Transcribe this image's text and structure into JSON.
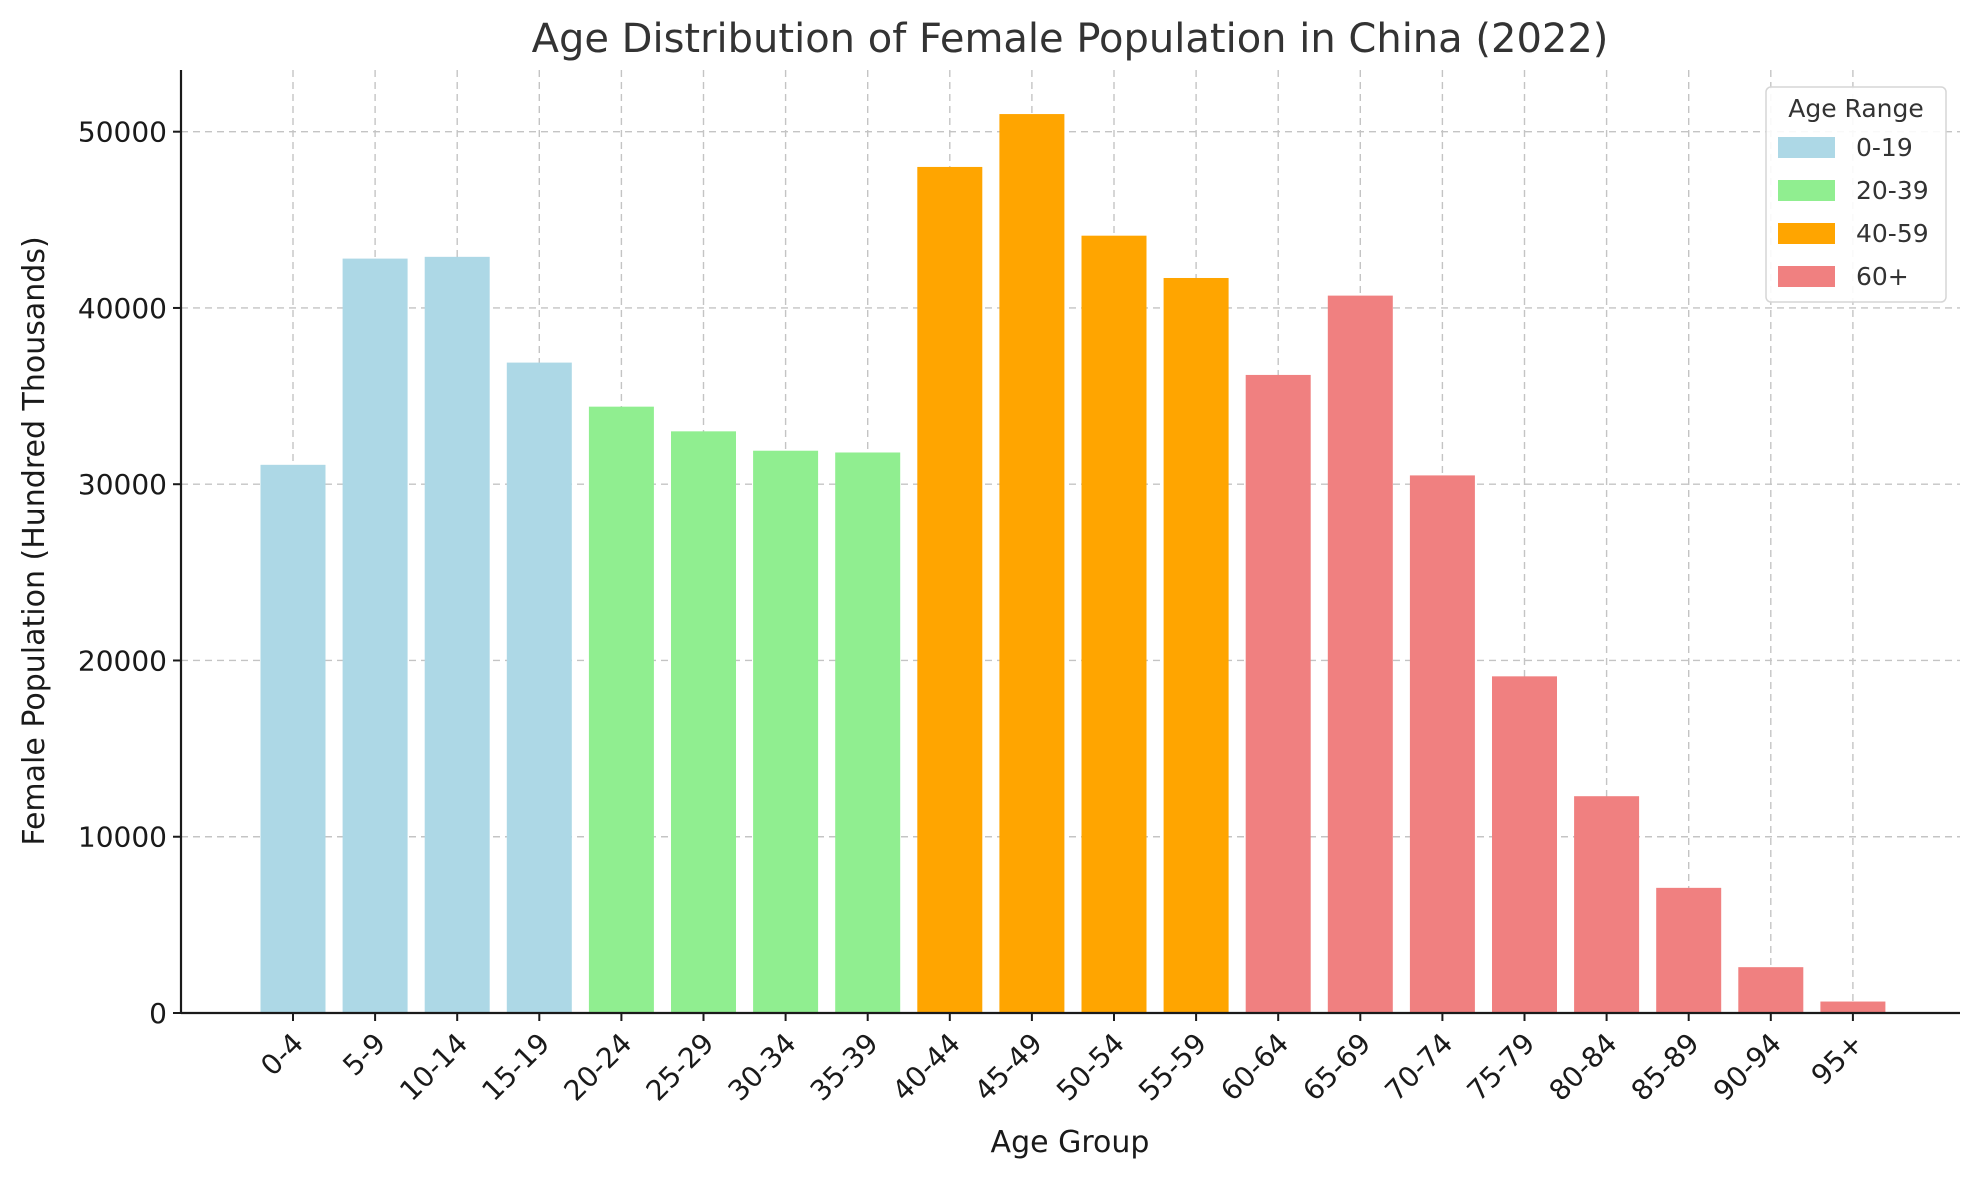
{
  "chart_data": {
    "type": "bar",
    "title": "Age Distribution of Female Population in China (2022)",
    "xlabel": "Age Group",
    "ylabel": "Female Population (Hundred Thousands)",
    "ylim": [
      0,
      53500
    ],
    "yticks": [
      0,
      10000,
      20000,
      30000,
      40000,
      50000
    ],
    "grid": true,
    "categories": [
      "0-4",
      "5-9",
      "10-14",
      "15-19",
      "20-24",
      "25-29",
      "30-34",
      "35-39",
      "40-44",
      "45-49",
      "50-54",
      "55-59",
      "60-64",
      "65-69",
      "70-74",
      "75-79",
      "80-84",
      "85-89",
      "90-94",
      "95+"
    ],
    "values": [
      31100,
      42800,
      42900,
      36900,
      34400,
      33000,
      31900,
      31800,
      48000,
      51000,
      44100,
      41700,
      36200,
      40700,
      30500,
      19100,
      12300,
      7100,
      2600,
      650
    ],
    "groups": [
      0,
      0,
      0,
      0,
      1,
      1,
      1,
      1,
      2,
      2,
      2,
      2,
      3,
      3,
      3,
      3,
      3,
      3,
      3,
      3
    ],
    "legend": {
      "title": "Age Range",
      "placement": "top-right",
      "entries": [
        {
          "name": "0-19",
          "color": "#add8e6"
        },
        {
          "name": "20-39",
          "color": "#90ee90"
        },
        {
          "name": "40-59",
          "color": "#ffa500"
        },
        {
          "name": "60+",
          "color": "#f08080"
        }
      ]
    }
  }
}
